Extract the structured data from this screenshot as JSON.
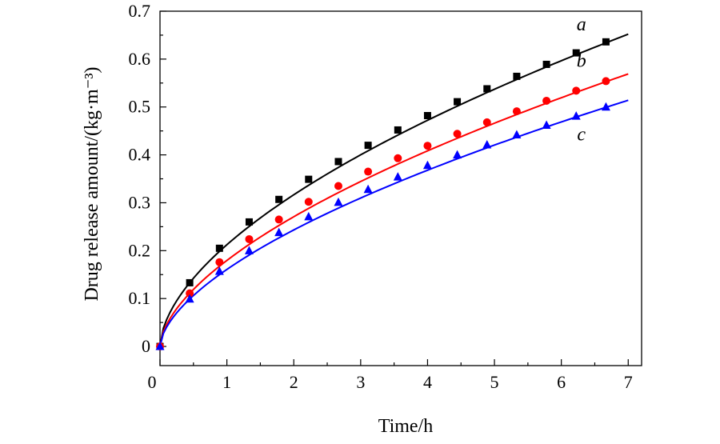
{
  "chart_data": {
    "type": "line",
    "title": "",
    "xlabel": "Time/h",
    "ylabel": "Drug release amount/(kg·m⁻³)",
    "xlim": [
      0,
      7.2
    ],
    "ylim": [
      -0.04,
      0.7
    ],
    "xticks": [
      0,
      1,
      2,
      3,
      4,
      5,
      6,
      7
    ],
    "yticks": [
      0,
      0.1,
      0.2,
      0.3,
      0.4,
      0.5,
      0.6,
      0.7
    ],
    "xtick_labels": [
      "0",
      "1",
      "2",
      "3",
      "4",
      "5",
      "6",
      "7"
    ],
    "ytick_labels": [
      "0",
      "0.1",
      "0.2",
      "0.3",
      "0.4",
      "0.5",
      "0.6",
      "0.7"
    ],
    "grid": false,
    "series": [
      {
        "name": "a",
        "color": "#000000",
        "marker": "square",
        "x": [
          0,
          0.444,
          0.889,
          1.333,
          1.778,
          2.222,
          2.667,
          3.111,
          3.556,
          4.0,
          4.444,
          4.889,
          5.333,
          5.778,
          6.222,
          6.667
        ],
        "y": [
          0.0,
          0.133,
          0.205,
          0.26,
          0.307,
          0.349,
          0.386,
          0.42,
          0.452,
          0.482,
          0.511,
          0.538,
          0.564,
          0.589,
          0.613,
          0.636
        ],
        "curve_end": [
          7.0,
          0.652
        ]
      },
      {
        "name": "b",
        "color": "#ff0000",
        "marker": "circle",
        "x": [
          0,
          0.444,
          0.889,
          1.333,
          1.778,
          2.222,
          2.667,
          3.111,
          3.556,
          4.0,
          4.444,
          4.889,
          5.333,
          5.778,
          6.222,
          6.667
        ],
        "y": [
          0.0,
          0.111,
          0.176,
          0.224,
          0.265,
          0.302,
          0.335,
          0.365,
          0.393,
          0.419,
          0.444,
          0.468,
          0.491,
          0.513,
          0.534,
          0.554
        ],
        "curve_end": [
          7.0,
          0.569
        ]
      },
      {
        "name": "c",
        "color": "#0000ff",
        "marker": "triangle",
        "x": [
          0,
          0.444,
          0.889,
          1.333,
          1.778,
          2.222,
          2.667,
          3.111,
          3.556,
          4.0,
          4.444,
          4.889,
          5.333,
          5.778,
          6.222,
          6.667
        ],
        "y": [
          0.0,
          0.099,
          0.157,
          0.2,
          0.238,
          0.271,
          0.301,
          0.328,
          0.354,
          0.378,
          0.4,
          0.421,
          0.442,
          0.462,
          0.481,
          0.5
        ],
        "curve_end": [
          7.0,
          0.514
        ]
      }
    ],
    "annotations": [
      {
        "text": "a",
        "x": 6.3,
        "y": 0.66
      },
      {
        "text": "b",
        "x": 6.3,
        "y": 0.584
      },
      {
        "text": "c",
        "x": 6.3,
        "y": 0.43
      }
    ]
  }
}
